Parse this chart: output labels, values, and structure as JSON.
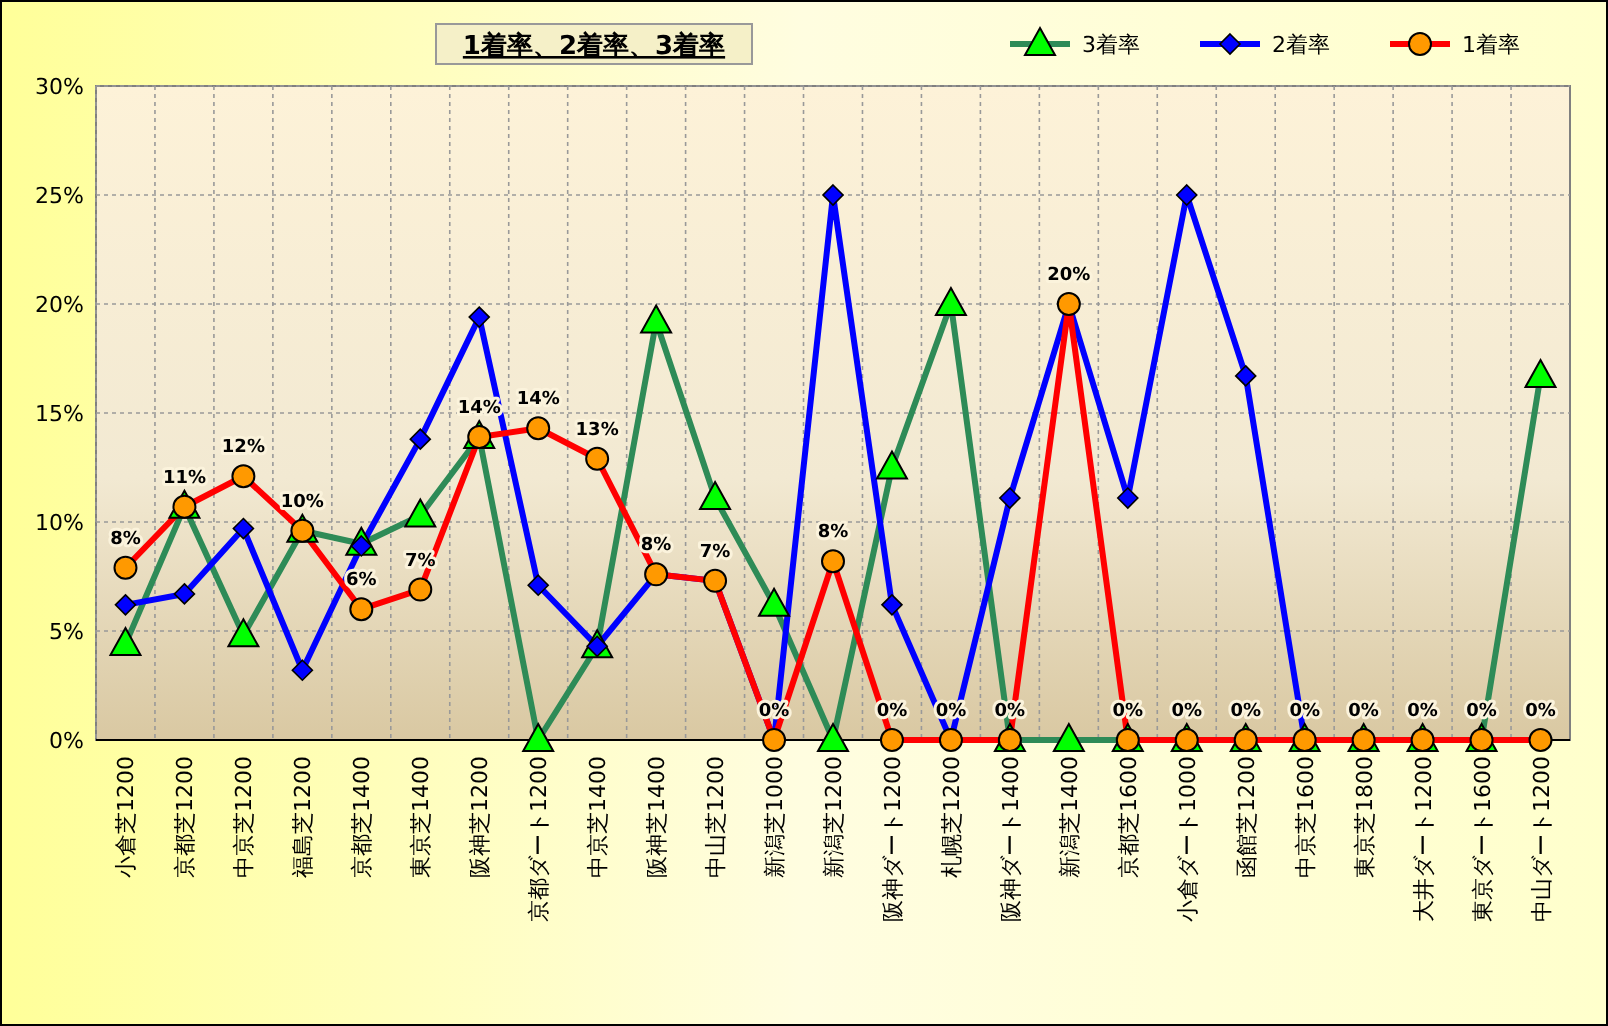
{
  "chart_data": {
    "type": "line",
    "title": "1着率、2着率、3着率",
    "categories": [
      "小倉芝1200",
      "京都芝1200",
      "中京芝1200",
      "福島芝1200",
      "京都芝1400",
      "東京芝1400",
      "阪神芝1200",
      "京都ダート1200",
      "中京芝1400",
      "阪神芝1400",
      "中山芝1200",
      "新潟芝1000",
      "新潟芝1200",
      "阪神ダート1200",
      "札幌芝1200",
      "阪神ダート1400",
      "新潟芝1400",
      "京都芝1600",
      "小倉ダート1000",
      "函館芝1200",
      "中京芝1600",
      "東京芝1800",
      "大井ダート1200",
      "東京ダート1600",
      "中山ダート1200"
    ],
    "series": [
      {
        "name": "3着率",
        "color": "#2e8b57",
        "marker": "triangle",
        "values": [
          4.4,
          10.7,
          4.8,
          9.6,
          9.0,
          10.3,
          13.9,
          0,
          4.3,
          19.2,
          11.1,
          6.2,
          0,
          12.5,
          20,
          0,
          0,
          0,
          0,
          0,
          0,
          0,
          0,
          0,
          16.7
        ]
      },
      {
        "name": "2着率",
        "color": "#0000ff",
        "marker": "diamond",
        "values": [
          6.2,
          6.7,
          9.7,
          3.2,
          8.9,
          13.8,
          19.4,
          7.1,
          4.3,
          7.6,
          7.3,
          0,
          25,
          6.2,
          0,
          11.1,
          20,
          11.1,
          25,
          16.7,
          0,
          null,
          null,
          null,
          null
        ]
      },
      {
        "name": "1着率",
        "color": "#ff0000",
        "marker": "circle",
        "values": [
          7.9,
          10.7,
          12.1,
          9.6,
          6.0,
          6.9,
          13.9,
          14.3,
          12.9,
          7.6,
          7.3,
          0,
          8.2,
          0,
          0,
          0,
          20,
          0,
          0,
          0,
          0,
          0,
          0,
          0,
          0
        ],
        "value_labels": [
          "8%",
          "11%",
          "12%",
          "10%",
          "6%",
          "7%",
          "14%",
          "14%",
          "13%",
          "8%",
          "7%",
          "0%",
          "8%",
          "0%",
          "0%",
          "0%",
          "20%",
          "0%",
          "0%",
          "0%",
          "0%",
          "0%",
          "0%",
          "0%",
          "0%"
        ]
      }
    ],
    "ylim": [
      0,
      30
    ],
    "yticks": [
      {
        "value": 0,
        "label": "0%"
      },
      {
        "value": 5,
        "label": "5%"
      },
      {
        "value": 10,
        "label": "10%"
      },
      {
        "value": 15,
        "label": "15%"
      },
      {
        "value": 20,
        "label": "20%"
      },
      {
        "value": 25,
        "label": "25%"
      },
      {
        "value": 30,
        "label": "30%"
      }
    ],
    "grid": true,
    "legend": "top right",
    "line_style": "solid"
  }
}
